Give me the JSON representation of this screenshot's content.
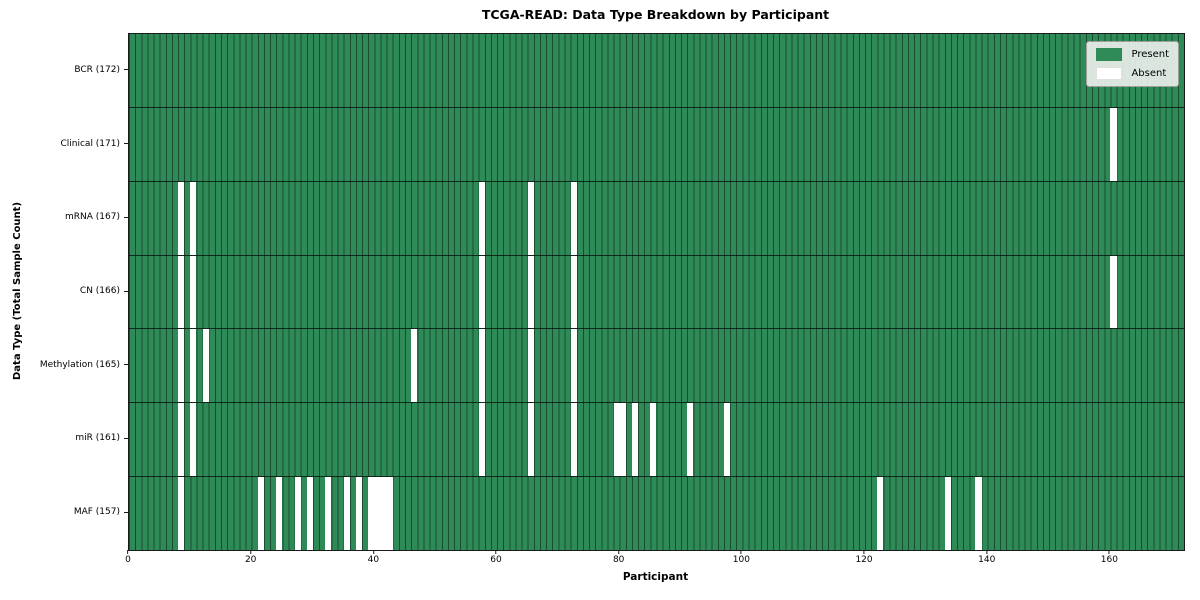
{
  "title": "TCGA-READ: Data Type Breakdown by Participant",
  "x_axis": {
    "label": "Participant",
    "ticks": [
      0,
      20,
      40,
      60,
      80,
      100,
      120,
      140,
      160
    ]
  },
  "y_axis": {
    "label": "Data Type (Total Sample Count)"
  },
  "legend": [
    {
      "label": "Present",
      "color": "#2e8b57"
    },
    {
      "label": "Absent",
      "color": "#ffffff"
    }
  ],
  "colors": {
    "present": "#2e8b57",
    "absent": "#ffffff",
    "grid_line": "rgba(0,0,0,0.45)",
    "row_divider": "rgba(0,0,0,0.7)",
    "legend_bg": "#e9eee9"
  },
  "chart_data": {
    "type": "heatmap",
    "title": "TCGA-READ: Data Type Breakdown by Participant",
    "xlabel": "Participant",
    "ylabel": "Data Type (Total Sample Count)",
    "n_participants": 172,
    "xlim": [
      0,
      172
    ],
    "legend_position": "upper right",
    "grid": true,
    "rows": [
      {
        "key": "bcr",
        "label": "BCR (172)",
        "data_type": "BCR",
        "total": 172,
        "absent_participants": []
      },
      {
        "key": "clinical",
        "label": "Clinical (171)",
        "data_type": "Clinical",
        "total": 171,
        "absent_participants": [
          160
        ]
      },
      {
        "key": "mrna",
        "label": "mRNA (167)",
        "data_type": "mRNA",
        "total": 167,
        "absent_participants": [
          8,
          10,
          57,
          65,
          72
        ]
      },
      {
        "key": "cn",
        "label": "CN (166)",
        "data_type": "CN",
        "total": 166,
        "absent_participants": [
          8,
          10,
          57,
          65,
          72,
          160
        ]
      },
      {
        "key": "methylation",
        "label": "Methylation (165)",
        "data_type": "Methylation",
        "total": 165,
        "absent_participants": [
          8,
          10,
          12,
          46,
          57,
          65,
          72
        ]
      },
      {
        "key": "mir",
        "label": "miR (161)",
        "data_type": "miR",
        "total": 161,
        "absent_participants": [
          8,
          10,
          57,
          65,
          72,
          79,
          80,
          82,
          85,
          91,
          97
        ]
      },
      {
        "key": "maf",
        "label": "MAF (157)",
        "data_type": "MAF",
        "total": 157,
        "absent_participants": [
          8,
          21,
          24,
          27,
          29,
          32,
          35,
          37,
          39,
          40,
          41,
          42,
          122,
          133,
          138
        ]
      }
    ]
  }
}
